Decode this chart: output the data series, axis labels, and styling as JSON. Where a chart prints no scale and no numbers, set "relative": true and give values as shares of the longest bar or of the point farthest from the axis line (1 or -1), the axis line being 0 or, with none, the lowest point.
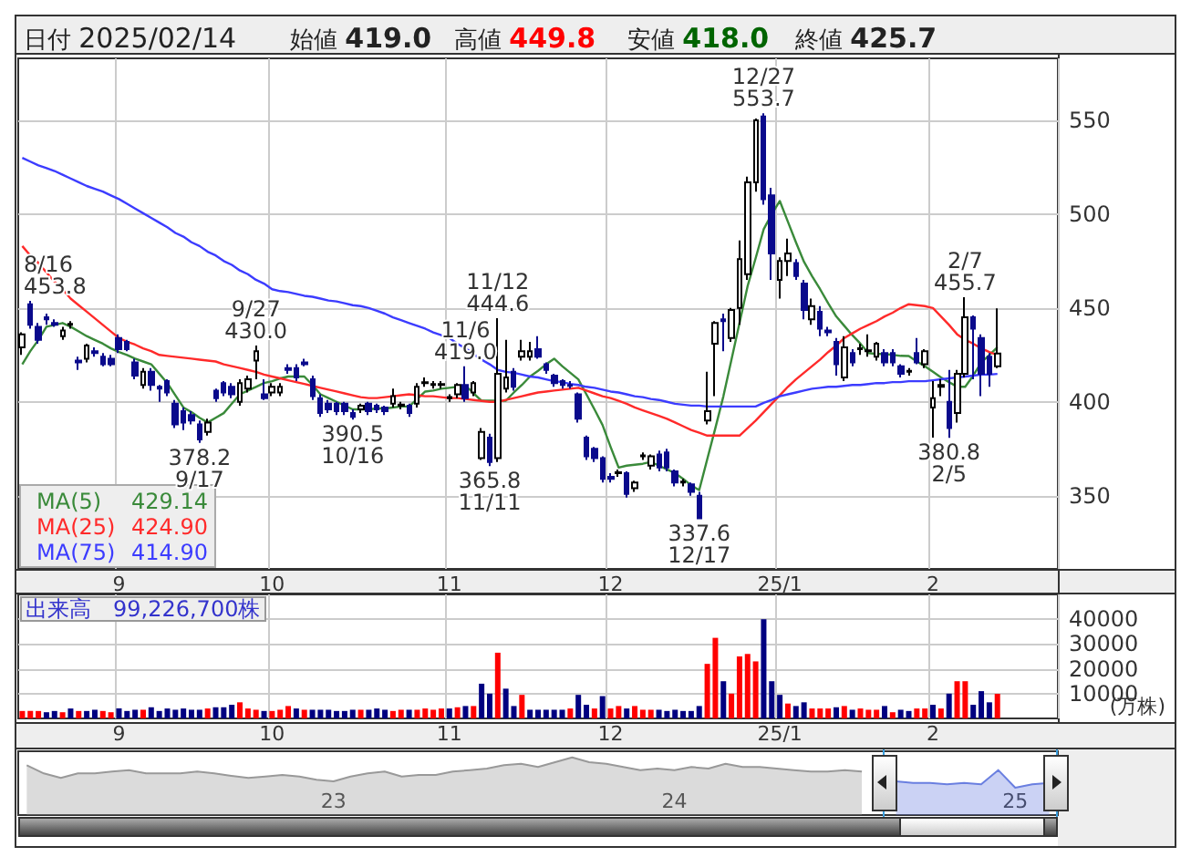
{
  "chart_data": [
    {
      "type": "candlestick",
      "annotations": [
        "日付 2025/02/14",
        "始値 419.0",
        "高値 449.8",
        "安値 418.0",
        "終値 425.7",
        "8/16\n453.8",
        {
          "text": "378.2\n9/17",
          "y": 378.2
        },
        {
          "text": "9/27\n430.0",
          "y": 430.0
        },
        {
          "text": "390.5\n10/16",
          "y": 390.5
        },
        {
          "text": "11/6\n419.0",
          "y": 419.0
        },
        {
          "text": "11/12\n444.6",
          "y": 444.6
        },
        {
          "text": "365.8\n11/11",
          "y": 365.8
        },
        {
          "text": "337.6\n12/17",
          "y": 337.6
        },
        {
          "text": "12/27\n553.7",
          "y": 553.7
        },
        {
          "text": "2/7\n455.7",
          "y": 455.7
        },
        {
          "text": "380.8\n2/5",
          "y": 380.8
        }
      ],
      "categories": [
        null,
        null,
        null,
        null,
        null,
        null,
        null,
        null,
        null,
        null,
        null,
        null,
        "9",
        null,
        null,
        null,
        null,
        null,
        null,
        null,
        null,
        null,
        null,
        null,
        null,
        null,
        null,
        null,
        null,
        null,
        null,
        "10",
        null,
        null,
        null,
        null,
        null,
        null,
        null,
        null,
        null,
        null,
        null,
        null,
        null,
        null,
        null,
        null,
        null,
        null,
        null,
        null,
        null,
        "11",
        null,
        null,
        null,
        null,
        null,
        null,
        null,
        null,
        null,
        null,
        null,
        null,
        null,
        null,
        null,
        null,
        null,
        null,
        null,
        "12",
        null,
        null,
        null,
        null,
        null,
        null,
        null,
        null,
        null,
        null,
        null,
        null,
        null,
        null,
        null,
        null,
        null,
        null,
        null,
        null,
        "25/1",
        null,
        null,
        null,
        null,
        null,
        null,
        null,
        null,
        null,
        null,
        null,
        null,
        null,
        null,
        null,
        null,
        null,
        null,
        "2",
        null,
        null,
        null,
        null,
        null,
        null,
        null,
        null
      ],
      "ohlc": [
        [
          429,
          437,
          425,
          436
        ],
        [
          452,
          453.8,
          439,
          441
        ],
        [
          440,
          442,
          431,
          433
        ],
        [
          445,
          447,
          441,
          444
        ],
        [
          442,
          444,
          440,
          441
        ],
        [
          435,
          440,
          433,
          438
        ],
        [
          441,
          443,
          439,
          441.5
        ],
        [
          422,
          424,
          417,
          421
        ],
        [
          423,
          431,
          421,
          430
        ],
        [
          427,
          429,
          424,
          426
        ],
        [
          424,
          426,
          419,
          420
        ],
        [
          423,
          425,
          419,
          420
        ],
        [
          434,
          436,
          426,
          428
        ],
        [
          432,
          433,
          427,
          428
        ],
        [
          421,
          423,
          412,
          414
        ],
        [
          409,
          418,
          407,
          416
        ],
        [
          416,
          418,
          406,
          409
        ],
        [
          408,
          409,
          400,
          407
        ],
        [
          411,
          412,
          403,
          405
        ],
        [
          399,
          401,
          386,
          388
        ],
        [
          395,
          397,
          385,
          389
        ],
        [
          393,
          395,
          388,
          390
        ],
        [
          388,
          390,
          378.2,
          380
        ],
        [
          384,
          391,
          382,
          389
        ],
        [
          406,
          407,
          400,
          402
        ],
        [
          410,
          411,
          403,
          405
        ],
        [
          408,
          410,
          402,
          404
        ],
        [
          400,
          412,
          398,
          410
        ],
        [
          407,
          414,
          405,
          412
        ],
        [
          422,
          430,
          412,
          427
        ],
        [
          404,
          412,
          401,
          402
        ],
        [
          405,
          410,
          403,
          408
        ],
        [
          405,
          410,
          403,
          408
        ],
        [
          418,
          420,
          415,
          417
        ],
        [
          418,
          420,
          411,
          413
        ],
        [
          421,
          423,
          419,
          420
        ],
        [
          412,
          414,
          401,
          403
        ],
        [
          402,
          404,
          392,
          394
        ],
        [
          399,
          401,
          394,
          396
        ],
        [
          399,
          400,
          393,
          395
        ],
        [
          399,
          400,
          393,
          395
        ],
        [
          394,
          396,
          390.5,
          392
        ],
        [
          396,
          399,
          394,
          398
        ],
        [
          399,
          400,
          393,
          395
        ],
        [
          398,
          399,
          394,
          396
        ],
        [
          397,
          398,
          393,
          395
        ],
        [
          399,
          407,
          397,
          403
        ],
        [
          398,
          400,
          396,
          398.5
        ],
        [
          398,
          399,
          392,
          394
        ],
        [
          399,
          410,
          397,
          408
        ],
        [
          410,
          413,
          408,
          410.5
        ],
        [
          409,
          411,
          407,
          409.5
        ],
        [
          409,
          411,
          407,
          409.5
        ],
        [
          402,
          404,
          400,
          402.5
        ],
        [
          404,
          410,
          402,
          409
        ],
        [
          409,
          419,
          400,
          402
        ],
        [
          405,
          411,
          403,
          410
        ],
        [
          370,
          386,
          369,
          384
        ],
        [
          381,
          383,
          365.8,
          368
        ],
        [
          370,
          444.6,
          368,
          415
        ],
        [
          407,
          433,
          405,
          413
        ],
        [
          416,
          418,
          406,
          408
        ],
        [
          424,
          433,
          422,
          427
        ],
        [
          424,
          432,
          422,
          427
        ],
        [
          428,
          435,
          423,
          424
        ],
        [
          420,
          421,
          415,
          417
        ],
        [
          414,
          415,
          408,
          410
        ],
        [
          411,
          412,
          407,
          409
        ],
        [
          409,
          411,
          407,
          408.5
        ],
        [
          404,
          405,
          389,
          391
        ],
        [
          381,
          382,
          369,
          371
        ],
        [
          375,
          376,
          368,
          370
        ],
        [
          370,
          371,
          357,
          359
        ],
        [
          360,
          362,
          357,
          359
        ],
        [
          362,
          364,
          360,
          362.5
        ],
        [
          362,
          363,
          349,
          351
        ],
        [
          354,
          358,
          352,
          357
        ],
        [
          371,
          373,
          369,
          371.5
        ],
        [
          366,
          372,
          364,
          371
        ],
        [
          372,
          374,
          363,
          365
        ],
        [
          373,
          375,
          363,
          365
        ],
        [
          363,
          364,
          355,
          357
        ],
        [
          357,
          359,
          355,
          357.5
        ],
        [
          356,
          357,
          350,
          352
        ],
        [
          350,
          352,
          337.6,
          338
        ],
        [
          390,
          416,
          388,
          395
        ],
        [
          431,
          443,
          403,
          442
        ],
        [
          444,
          447,
          427,
          443
        ],
        [
          434,
          450,
          432,
          449
        ],
        [
          450,
          486,
          441,
          476
        ],
        [
          468,
          520,
          465,
          517
        ],
        [
          517,
          551,
          512,
          550
        ],
        [
          552,
          553.7,
          505,
          508
        ],
        [
          510,
          514,
          465,
          479
        ],
        [
          465,
          477,
          455,
          475
        ],
        [
          475,
          487,
          467,
          479
        ],
        [
          474,
          476,
          465,
          467
        ],
        [
          463,
          465,
          444,
          449
        ],
        [
          444,
          455,
          441,
          451
        ],
        [
          448,
          451,
          435,
          439
        ],
        [
          438,
          440,
          435,
          437
        ],
        [
          432,
          434,
          414,
          420
        ],
        [
          413,
          435,
          411,
          429
        ],
        [
          426,
          428,
          419,
          421
        ],
        [
          428,
          431,
          425,
          428.5
        ],
        [
          427,
          436,
          424,
          427.5
        ],
        [
          424,
          432,
          422,
          431
        ],
        [
          426,
          428,
          419,
          421
        ],
        [
          426,
          428,
          419,
          421
        ],
        [
          419,
          420,
          413,
          415
        ],
        [
          416,
          418,
          414,
          416.5
        ],
        [
          426,
          434,
          420,
          421
        ],
        [
          420,
          428,
          418,
          427
        ],
        [
          397,
          411,
          381,
          402
        ],
        [
          408,
          412,
          403,
          409
        ],
        [
          400,
          417,
          380.8,
          386
        ],
        [
          394,
          417,
          389,
          415
        ],
        [
          415,
          455.7,
          413,
          445
        ],
        [
          445,
          446,
          412,
          439
        ],
        [
          434,
          436,
          403,
          415
        ],
        [
          424,
          426,
          408,
          415
        ],
        [
          419,
          449.8,
          418,
          425.7
        ]
      ],
      "series": [
        {
          "type": "line",
          "name": "MA(5) 429.14",
          "color": "#3a8a3a",
          "values": [
            420,
            427,
            433,
            440,
            441,
            442,
            440,
            437.5,
            435,
            433,
            431,
            428.5,
            426.5,
            425,
            423,
            421.5,
            420,
            415,
            410,
            403.5,
            397,
            394.5,
            391.5,
            389,
            391.5,
            394,
            399,
            404,
            406,
            408,
            410,
            411,
            412.5,
            413.5,
            413.5,
            413.5,
            409,
            404,
            402,
            400,
            398,
            396,
            396,
            396,
            396.5,
            396.5,
            397,
            397.5,
            397.5,
            401.5,
            405.5,
            406,
            407,
            407.5,
            408,
            408.7,
            404.5,
            400.6,
            400.6,
            400.6,
            400.6,
            405,
            409,
            413.5,
            416.5,
            420,
            423,
            419,
            415.5,
            412,
            404,
            396,
            387.7,
            376,
            365,
            366,
            366.5,
            367,
            368,
            366,
            364,
            362,
            359,
            355.5,
            353,
            369.5,
            386,
            403,
            422.5,
            442,
            461.6,
            476.5,
            492,
            500,
            507,
            496,
            485,
            474.6,
            467,
            460,
            452.5,
            445.5,
            440.5,
            435.5,
            431,
            426,
            425.5,
            425.5,
            425,
            424.5,
            424.4,
            421.5,
            419,
            416,
            413,
            410.5,
            408,
            408,
            414,
            421,
            425,
            429.14
          ]
        },
        {
          "type": "line",
          "name": "MA(25) 424.90",
          "color": "#ff2a2a",
          "values": [
            483,
            478,
            474,
            469,
            464,
            460,
            455,
            451.5,
            448,
            444.5,
            441,
            437.5,
            434,
            432,
            430.5,
            428.5,
            427,
            425,
            424.5,
            424,
            423.5,
            423,
            422.5,
            422,
            421.5,
            420,
            419,
            418,
            417,
            416,
            414.5,
            413.5,
            412.5,
            411.5,
            410.5,
            409.5,
            408.5,
            407.5,
            406.5,
            405.5,
            404.5,
            403.5,
            402.5,
            402,
            402,
            402.5,
            403,
            403.5,
            404,
            403.5,
            403,
            403,
            402.5,
            402,
            402,
            401.5,
            401,
            400.5,
            400,
            400,
            401,
            402,
            403,
            404,
            405,
            405.5,
            406,
            406.5,
            407,
            407.5,
            406,
            404.5,
            403,
            402,
            400.5,
            399,
            397,
            395.5,
            394,
            392.5,
            391,
            389,
            387,
            385,
            383.5,
            382,
            382,
            382,
            382,
            382,
            386,
            390,
            394.5,
            399,
            403.5,
            408,
            412,
            415.5,
            419,
            422.5,
            426.5,
            430,
            434,
            436.5,
            439,
            441,
            443,
            445.5,
            447.5,
            450,
            452,
            451.5,
            451,
            450,
            445.5,
            441,
            436,
            433,
            431,
            428.5,
            426.5,
            424.9
          ]
        },
        {
          "type": "line",
          "name": "MA(75) 414.90",
          "color": "#3c3cff",
          "values": [
            530,
            528,
            526,
            524.5,
            523,
            521,
            519,
            517,
            515,
            513.5,
            512,
            510,
            508,
            505.5,
            503,
            500.5,
            498,
            495.5,
            493,
            490,
            488,
            485,
            483,
            480,
            478,
            475,
            473,
            470,
            468,
            465,
            463,
            460,
            459,
            458.5,
            457.5,
            456.5,
            456,
            455,
            454,
            453.5,
            452.5,
            451.5,
            451,
            450,
            448.5,
            447,
            445,
            443.5,
            442,
            440.5,
            439,
            437,
            435.5,
            434,
            431,
            428.5,
            425.5,
            422.5,
            420,
            417,
            416,
            415.5,
            414.5,
            413.5,
            413,
            412,
            411,
            410.5,
            409.5,
            409,
            408,
            407.5,
            406.5,
            405.5,
            405,
            404,
            403,
            402.5,
            401.5,
            401,
            400,
            399,
            398.5,
            398,
            398,
            397.5,
            397.5,
            397.5,
            397.5,
            397.5,
            397.5,
            397.5,
            399.5,
            401,
            403,
            404,
            405,
            406,
            407,
            407.5,
            408,
            408,
            408.5,
            409,
            409,
            409.5,
            410,
            410,
            410.5,
            410.5,
            411,
            411,
            411,
            411.5,
            412,
            412.5,
            413,
            413.5,
            414,
            414.5,
            414.5,
            414.9
          ]
        }
      ],
      "ylim": [
        311,
        583
      ],
      "yticks": [
        350,
        400,
        450,
        500,
        550
      ],
      "grid": true,
      "legend": "bottom left",
      "marker": "none"
    },
    {
      "type": "bar",
      "title": "出来高　99,226,700株",
      "ylabel": "(万株)",
      "categories": [
        null,
        null,
        null,
        null,
        null,
        null,
        null,
        null,
        null,
        null,
        null,
        null,
        "9",
        null,
        null,
        null,
        null,
        null,
        null,
        null,
        null,
        null,
        null,
        null,
        null,
        null,
        null,
        null,
        null,
        null,
        null,
        "10",
        null,
        null,
        null,
        null,
        null,
        null,
        null,
        null,
        null,
        null,
        null,
        null,
        null,
        null,
        null,
        null,
        null,
        null,
        null,
        null,
        null,
        "11",
        null,
        null,
        null,
        null,
        null,
        null,
        null,
        null,
        null,
        null,
        null,
        null,
        null,
        null,
        null,
        null,
        null,
        null,
        null,
        "12",
        null,
        null,
        null,
        null,
        null,
        null,
        null,
        null,
        null,
        null,
        null,
        null,
        null,
        null,
        null,
        null,
        null,
        null,
        null,
        null,
        "25/1",
        null,
        null,
        null,
        null,
        null,
        null,
        null,
        null,
        null,
        null,
        null,
        null,
        null,
        null,
        null,
        null,
        null,
        null,
        "2",
        null,
        null,
        null,
        null,
        null,
        null,
        null,
        null
      ],
      "values": [
        3000,
        3000,
        3000,
        2500,
        3000,
        2500,
        4000,
        3000,
        3000,
        3500,
        3000,
        2500,
        4000,
        3000,
        3500,
        3500,
        4500,
        3000,
        4000,
        3500,
        4000,
        3500,
        3500,
        4000,
        4500,
        4500,
        5500,
        6500,
        4000,
        3500,
        3000,
        3000,
        3500,
        5000,
        4000,
        3500,
        3500,
        3500,
        3500,
        3000,
        3000,
        3500,
        3500,
        3500,
        4000,
        3500,
        3000,
        3500,
        3500,
        3500,
        4000,
        3500,
        4000,
        4000,
        4500,
        5000,
        5000,
        14000,
        10000,
        26500,
        12000,
        5000,
        9500,
        3500,
        3500,
        3500,
        3500,
        3500,
        4000,
        9500,
        5500,
        4000,
        9000,
        4000,
        5000,
        4000,
        5000,
        3500,
        3500,
        3500,
        3000,
        3500,
        3000,
        3000,
        5000,
        22000,
        32500,
        15000,
        10000,
        25000,
        26000,
        23000,
        40000,
        15000,
        9500,
        6000,
        5000,
        6500,
        4000,
        4000,
        4000,
        4500,
        5000,
        3500,
        4000,
        3500,
        3500,
        5000,
        2500,
        3500,
        3000,
        4000,
        4000,
        5500,
        4000,
        10000,
        15000,
        15000,
        5500,
        11000,
        6500,
        9923
      ],
      "colors": [
        "#ff0000",
        "#ff0000",
        "#ff0000",
        "#000080",
        "#000080",
        "#ff0000",
        "#000080",
        "#ff0000",
        "#000080",
        "#000080",
        "#ff0000",
        "#ff0000",
        "#000080",
        "#000080",
        "#000080",
        "#ff0000",
        "#000080",
        "#000080",
        "#000080",
        "#000080",
        "#000080",
        "#000080",
        "#000080",
        "#ff0000",
        "#000080",
        "#000080",
        "#000080",
        "#ff0000",
        "#ff0000",
        "#ff0000",
        "#000080",
        "#ff0000",
        "#ff0000",
        "#ff0000",
        "#000080",
        "#ff0000",
        "#000080",
        "#000080",
        "#000080",
        "#000080",
        "#000080",
        "#000080",
        "#ff0000",
        "#000080",
        "#000080",
        "#000080",
        "#ff0000",
        "#ff0000",
        "#000080",
        "#ff0000",
        "#ff0000",
        "#ff0000",
        "#ff0000",
        "#000080",
        "#ff0000",
        "#000080",
        "#ff0000",
        "#000080",
        "#000080",
        "#ff0000",
        "#000080",
        "#000080",
        "#ff0000",
        "#000080",
        "#000080",
        "#000080",
        "#000080",
        "#000080",
        "#ff0000",
        "#000080",
        "#000080",
        "#ff0000",
        "#000080",
        "#ff0000",
        "#ff0000",
        "#000080",
        "#ff0000",
        "#ff0000",
        "#ff0000",
        "#000080",
        "#000080",
        "#000080",
        "#000080",
        "#000080",
        "#000080",
        "#ff0000",
        "#ff0000",
        "#000080",
        "#ff0000",
        "#ff0000",
        "#ff0000",
        "#ff0000",
        "#000080",
        "#000080",
        "#000080",
        "#ff0000",
        "#000080",
        "#000080",
        "#ff0000",
        "#ff0000",
        "#ff0000",
        "#000080",
        "#ff0000",
        "#000080",
        "#ff0000",
        "#ff0000",
        "#ff0000",
        "#000080",
        "#ff0000",
        "#000080",
        "#000080",
        "#ff0000",
        "#ff0000",
        "#000080",
        "#ff0000",
        "#000080",
        "#ff0000",
        "#ff0000",
        "#000080",
        "#000080",
        "#000080",
        "#ff0000"
      ],
      "ylim": [
        0,
        50000
      ],
      "yticks": [
        10000,
        20000,
        30000,
        40000
      ],
      "grid": true
    },
    {
      "type": "area",
      "relative": true,
      "tick_labels": "x",
      "marker": "none",
      "categories": [
        null,
        null,
        null,
        null,
        null,
        null,
        null,
        null,
        null,
        null,
        null,
        null,
        null,
        null,
        null,
        null,
        null,
        null,
        "23",
        null,
        null,
        null,
        null,
        null,
        null,
        null,
        null,
        null,
        null,
        null,
        null,
        null,
        null,
        null,
        null,
        null,
        null,
        null,
        "24",
        null,
        null,
        null,
        null,
        null,
        null,
        null,
        null,
        null,
        null,
        null,
        null,
        null,
        null,
        null,
        null,
        null,
        null,
        null,
        "25",
        null,
        null
      ],
      "series": [
        {
          "color": "#999999",
          "values": [
            0.74,
            0.47,
            0.32,
            0.47,
            0.47,
            0.53,
            0.58,
            0.47,
            0.47,
            0.47,
            0.53,
            0.47,
            0.39,
            0.32,
            0.37,
            0.42,
            0.37,
            0.26,
            0.21,
            0.37,
            0.47,
            0.53,
            0.37,
            0.42,
            0.42,
            0.53,
            0.58,
            0.63,
            0.74,
            0.79,
            0.68,
            0.84,
            1,
            0.84,
            0.79,
            0.68,
            0.58,
            0.63,
            0.58,
            0.68,
            0.63,
            0.79,
            0.68,
            0.68,
            0.63,
            0.58,
            0.53,
            0.53,
            0.58,
            0.53,
            null,
            null,
            null,
            null,
            null,
            null,
            null,
            null,
            null,
            null,
            null
          ]
        },
        {
          "color": "#6a7fe0",
          "values": [
            null,
            null,
            null,
            null,
            null,
            null,
            null,
            null,
            null,
            null,
            null,
            null,
            null,
            null,
            null,
            null,
            null,
            null,
            null,
            null,
            null,
            null,
            null,
            null,
            null,
            null,
            null,
            null,
            null,
            null,
            null,
            null,
            null,
            null,
            null,
            null,
            null,
            null,
            null,
            null,
            null,
            null,
            null,
            null,
            null,
            null,
            null,
            null,
            null,
            null,
            null,
            0.21,
            0.16,
            0.16,
            0.11,
            0.16,
            0.11,
            0.58,
            0,
            0.11,
            0.16
          ]
        }
      ]
    }
  ]
}
